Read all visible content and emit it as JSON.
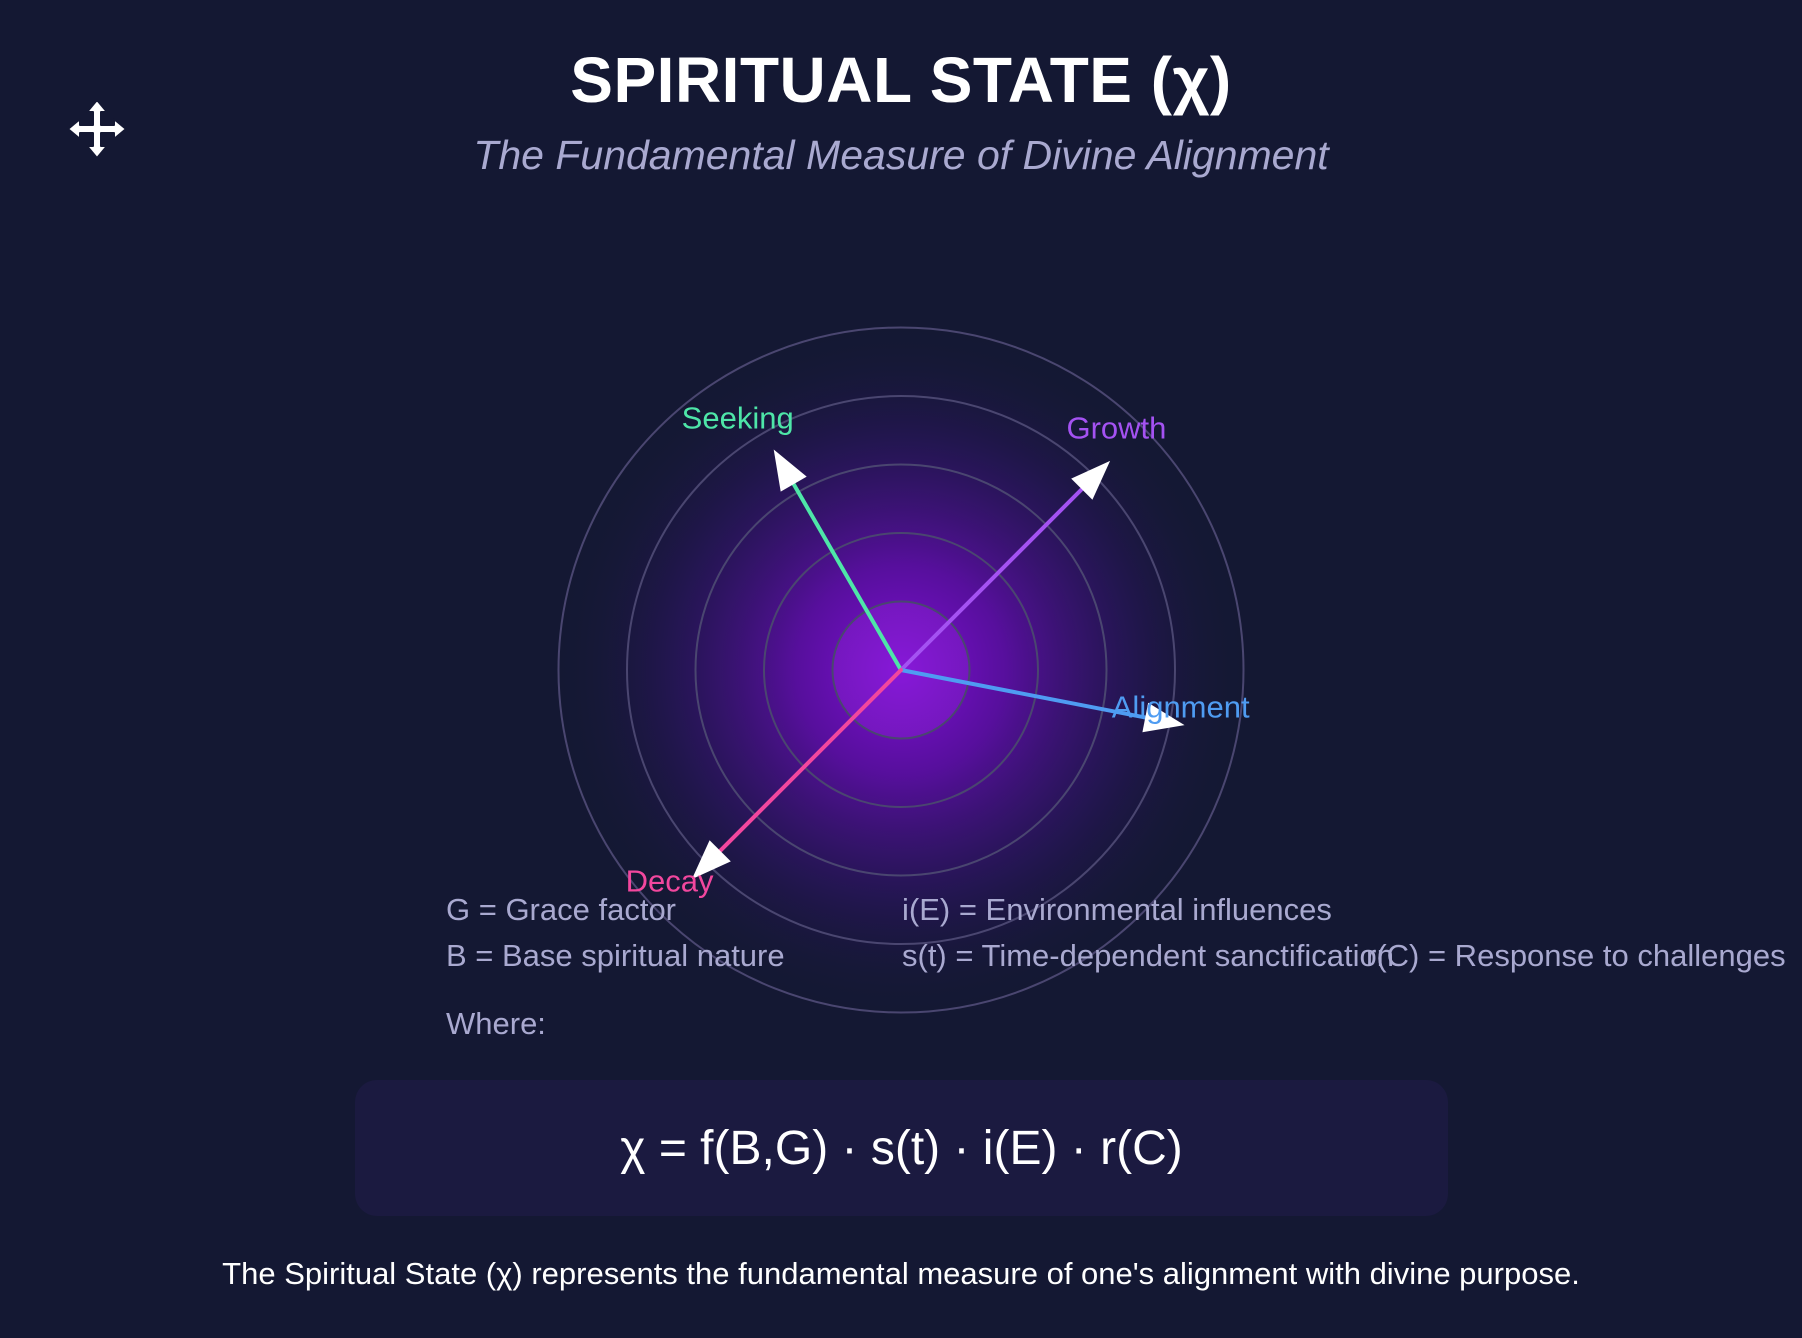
{
  "header": {
    "title": "SPIRITUAL STATE (χ)",
    "subtitle": "The Fundamental Measure of Divine Alignment"
  },
  "toolbar": {
    "move_icon": "move-arrows-icon"
  },
  "diagram": {
    "rings": 5,
    "center_glow_color": "#7a12c8",
    "ring_color": "#4a4670",
    "vectors": [
      {
        "label": "Seeking",
        "color": "#4ee6a8",
        "angle_deg": 120,
        "magnitude": 0.72
      },
      {
        "label": "Growth",
        "color": "#a452f2",
        "angle_deg": 45,
        "magnitude": 0.84
      },
      {
        "label": "Alignment",
        "color": "#4f9cf2",
        "angle_deg": -11,
        "magnitude": 0.82
      },
      {
        "label": "Decay",
        "color": "#f2479e",
        "angle_deg": -135,
        "magnitude": 0.84
      }
    ]
  },
  "legend": {
    "where_label": "Where:",
    "items": [
      "G = Grace factor",
      "B = Base spiritual nature",
      "i(E) = Environmental influences",
      "s(t) = Time-dependent sanctification",
      "r(C) = Response to challenges"
    ]
  },
  "formula": {
    "text": "χ = f(B,G) · s(t) · i(E) · r(C)"
  },
  "description": {
    "text": "The Spiritual State (χ) represents the fundamental measure of one's alignment with divine purpose."
  }
}
